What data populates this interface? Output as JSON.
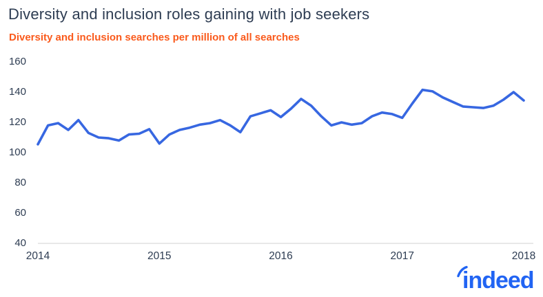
{
  "header": {
    "title": "Diversity and inclusion roles gaining with job seekers",
    "subtitle": "Diversity and inclusion searches per million of all searches"
  },
  "colors": {
    "title": "#2d3c52",
    "subtitle": "#fa5a1c",
    "axis_label": "#2d3c52",
    "axis_line": "#d9d9d9",
    "line": "#3767e1",
    "logo": "#2164f3"
  },
  "logo": {
    "brand": "indeed"
  },
  "chart_data": {
    "type": "line",
    "title": "Diversity and inclusion roles gaining with job seekers",
    "subtitle": "Diversity and inclusion searches per million of all searches",
    "xlabel": "",
    "ylabel": "Diversity and inclusion searches per million of all searches",
    "x_frequency": "monthly",
    "x_range": [
      "2014-01",
      "2018-01"
    ],
    "x_tick_labels": [
      "2014",
      "2015",
      "2016",
      "2017",
      "2018"
    ],
    "y_ticks": [
      160,
      140,
      120,
      100,
      80,
      60,
      40
    ],
    "ylim": [
      40,
      160
    ],
    "grid": false,
    "legend_position": "none",
    "series": [
      {
        "name": "Diversity and inclusion searches per million of all searches",
        "color": "#3767e1",
        "values": [
          105.5,
          118,
          119.5,
          115,
          121.5,
          113,
          110,
          109.5,
          108,
          112,
          112.5,
          115.5,
          106,
          112,
          115,
          116.5,
          118.5,
          119.5,
          121.5,
          118,
          113.5,
          124,
          126,
          128,
          123.5,
          129,
          135.5,
          131,
          124,
          118,
          120,
          118.5,
          119.5,
          124,
          126.5,
          125.5,
          123,
          132.5,
          141.5,
          140.5,
          136.5,
          133.5,
          130.5,
          130,
          129.5,
          131,
          135,
          140,
          134.5
        ]
      }
    ]
  }
}
